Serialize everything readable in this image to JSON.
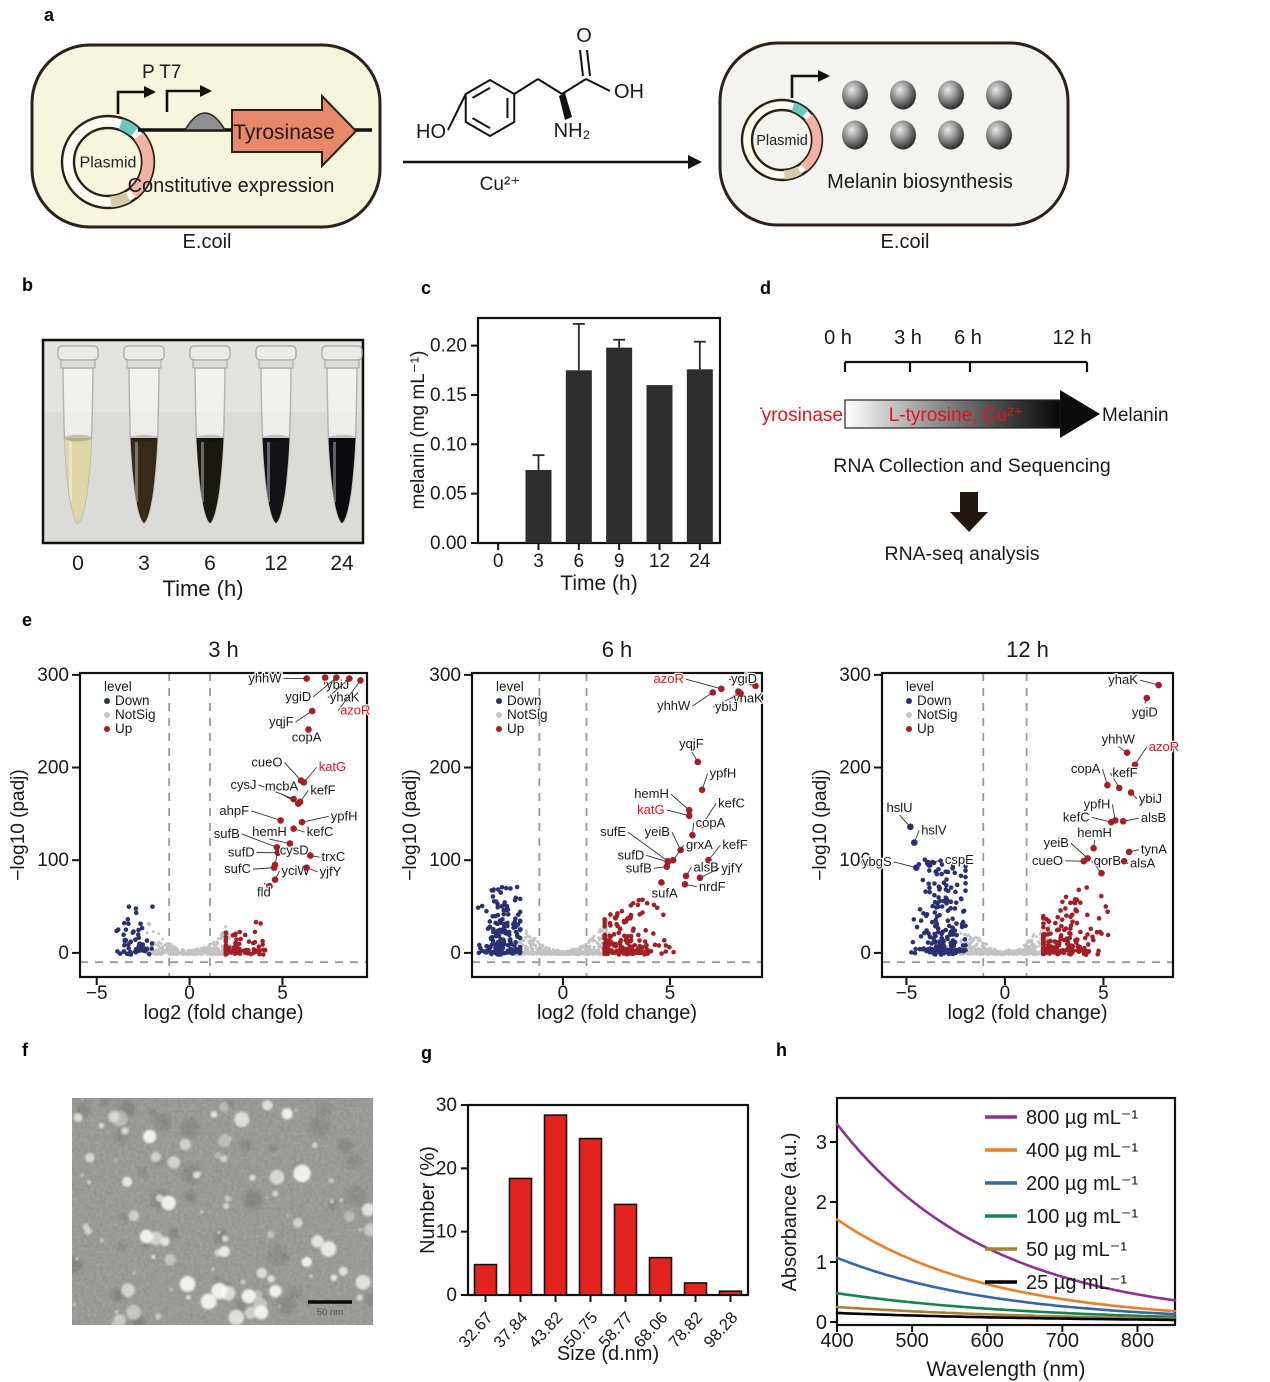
{
  "figure": {
    "panel_labels": {
      "a": "a",
      "b": "b",
      "c": "c",
      "d": "d",
      "e": "e",
      "f": "f",
      "g": "g",
      "h": "h"
    },
    "colors": {
      "highlight": "#e8121a",
      "up": "#a41e24",
      "down": "#283272",
      "notsig": "#c3c3c3",
      "axis": "#111111"
    }
  },
  "panel_a": {
    "left_cell": {
      "fill": "#f6f5de",
      "plasmid_label": "Plasmid",
      "promoter_label": "P T7",
      "gene_label": "Tyrosinase",
      "gene_fill": "#e8886a",
      "caption": "Constitutive expression",
      "organism": "E.coil"
    },
    "substrate": {
      "ho": "HO",
      "o": "O",
      "oh": "OH",
      "nh2": "NH₂"
    },
    "catalyst": "Cu²⁺",
    "right_cell": {
      "fill": "#f3f3f0",
      "plasmid_label": "Plasmid",
      "caption": "Melanin biosynthesis",
      "organism": "E.coil"
    },
    "plasmid_segment_colors": [
      "#6ac8bf",
      "#f2b3a7",
      "#d9caa6"
    ]
  },
  "panel_b": {
    "times": [
      "0",
      "3",
      "6",
      "12",
      "24"
    ],
    "xlabel": "Time (h)",
    "liquid_colors": [
      "#ded7a8",
      "#352a18",
      "#191911",
      "#121217",
      "#0c0c10"
    ]
  },
  "panel_d": {
    "timepoints": [
      "0 h",
      "3 h",
      "6 h",
      "12 h"
    ],
    "enzyme": "Tyrosinase",
    "arrow_label": "L-tyrosine, Cu²⁺",
    "product": "Melanin",
    "step1": "RNA Collection and Sequencing",
    "step2": "RNA-seq analysis"
  },
  "panel_f": {
    "scalebar_label": "50 nm"
  },
  "volcano_common": {
    "xlabel": "log2 (fold change)",
    "ylabel": "−log10 (padj)",
    "yticks": [
      0,
      100,
      200,
      300
    ],
    "vlines": [
      -1.1,
      1.1
    ],
    "hline": -10,
    "legend": {
      "title": "level",
      "items": [
        {
          "label": "Down",
          "color": "#283272"
        },
        {
          "label": "NotSig",
          "color": "#c3c3c3"
        },
        {
          "label": "Up",
          "color": "#a41e24"
        }
      ]
    }
  },
  "chart_data": [
    {
      "id": "c",
      "type": "bar",
      "categories": [
        "0",
        "3",
        "6",
        "9",
        "12",
        "24"
      ],
      "values": [
        0,
        0.074,
        0.175,
        0.198,
        0.16,
        0.176
      ],
      "errors": [
        0,
        0.015,
        0.047,
        0.008,
        0,
        0.028
      ],
      "ylabel": "melanin (mg mL⁻¹)",
      "xlabel": "Time (h)",
      "yticks": [
        "0.00",
        "0.05",
        "0.10",
        "0.15",
        "0.20"
      ],
      "ylim": [
        0,
        0.228
      ],
      "bar_color": "#2d2d2d"
    },
    {
      "id": "volcano_3h",
      "type": "scatter",
      "title": "3 h",
      "xticks": [
        -5,
        0,
        5
      ],
      "xlim": [
        -5.9,
        9.55
      ],
      "ylim": [
        -26,
        302
      ],
      "cloud": {
        "seed": 7,
        "gray": {
          "n": 430,
          "xw": 2.3,
          "ymax": 36
        },
        "blue": {
          "n": 60,
          "xc": -2.9,
          "xs": 0.75,
          "ymax": 50
        },
        "red": {
          "n": 80,
          "xc": 2.7,
          "xs": 1.15,
          "ymax": 60
        }
      },
      "genes": [
        [
          "yhhW",
          6.3,
          296,
          4.95,
          292,
          "e",
          ""
        ],
        [
          "ybiJ",
          7.3,
          297,
          7.35,
          285,
          "s",
          ""
        ],
        [
          "ygiD",
          7.9,
          297,
          6.55,
          272,
          "e",
          ""
        ],
        [
          "yhaK",
          8.6,
          296,
          7.55,
          271,
          "s",
          ""
        ],
        [
          "azoR",
          9.2,
          294,
          8.1,
          257,
          "s",
          "r"
        ],
        [
          "yqjF",
          6.6,
          261,
          5.6,
          245,
          "e",
          ""
        ],
        [
          "copA",
          6.4,
          241,
          6.3,
          228,
          "m",
          ""
        ],
        [
          "cueO",
          6.0,
          186,
          5.0,
          201,
          "e",
          ""
        ],
        [
          "katG",
          6.15,
          184,
          6.95,
          196,
          "s",
          "r"
        ],
        [
          "cysJ",
          5.6,
          166,
          3.6,
          177,
          "e",
          ""
        ],
        [
          "mcbA",
          5.85,
          161,
          4.95,
          175,
          "m",
          ""
        ],
        [
          "kefF",
          5.95,
          163,
          6.5,
          171,
          "s",
          ""
        ],
        [
          "ahpF",
          4.9,
          143,
          3.2,
          149,
          "e",
          ""
        ],
        [
          "ypfH",
          6.05,
          141,
          7.6,
          143,
          "s",
          ""
        ],
        [
          "sufB",
          4.7,
          114,
          2.7,
          124,
          "e",
          ""
        ],
        [
          "hemH",
          5.4,
          118,
          4.3,
          126,
          "m",
          ""
        ],
        [
          "kefC",
          5.6,
          134,
          6.3,
          126,
          "s",
          ""
        ],
        [
          "sufD",
          4.75,
          108,
          3.5,
          104,
          "e",
          ""
        ],
        [
          "cysD",
          4.6,
          95,
          4.85,
          106,
          "s",
          ""
        ],
        [
          "trxC",
          6.5,
          105,
          7.1,
          99,
          "s",
          ""
        ],
        [
          "sufC",
          4.55,
          92,
          3.3,
          86,
          "e",
          ""
        ],
        [
          "yciW",
          4.6,
          79,
          4.95,
          84,
          "s",
          ""
        ],
        [
          "yjfY",
          6.3,
          92,
          7.0,
          83,
          "s",
          ""
        ],
        [
          "fld",
          4.3,
          72,
          4.0,
          61,
          "m",
          ""
        ]
      ]
    },
    {
      "id": "volcano_6h",
      "type": "scatter",
      "title": "6 h",
      "xticks": [
        0,
        5
      ],
      "xlim": [
        -4.25,
        9.3
      ],
      "ylim": [
        -26,
        302
      ],
      "cloud": {
        "seed": 13,
        "gray": {
          "n": 500,
          "xw": 2.25,
          "ymax": 40
        },
        "blue": {
          "n": 170,
          "xc": -2.8,
          "xs": 0.6,
          "ymax": 70
        },
        "red": {
          "n": 160,
          "xc": 2.9,
          "xs": 1.15,
          "ymax": 105
        }
      },
      "genes": [
        [
          "azoR",
          7.4,
          285,
          5.65,
          291,
          "e",
          "r"
        ],
        [
          "ygiD",
          9.0,
          288,
          7.85,
          291,
          "s",
          ""
        ],
        [
          "yhaK",
          8.2,
          282,
          7.95,
          270,
          "s",
          ""
        ],
        [
          "yhhW",
          7.0,
          281,
          5.95,
          262,
          "e",
          ""
        ],
        [
          "ybiJ",
          8.3,
          280,
          7.1,
          261,
          "s",
          ""
        ],
        [
          "yqjF",
          6.3,
          206,
          6.0,
          221,
          "m",
          ""
        ],
        [
          "ypfH",
          6.5,
          176,
          6.85,
          189,
          "s",
          ""
        ],
        [
          "hemH",
          5.9,
          154,
          4.95,
          167,
          "e",
          ""
        ],
        [
          "katG",
          5.9,
          148,
          4.75,
          150,
          "e",
          "r"
        ],
        [
          "kefC",
          6.5,
          138,
          7.25,
          157,
          "s",
          ""
        ],
        [
          "copA",
          6.05,
          127,
          6.2,
          136,
          "s",
          ""
        ],
        [
          "sufE",
          4.9,
          99,
          2.95,
          126,
          "e",
          ""
        ],
        [
          "yeiB",
          5.5,
          111,
          5.0,
          126,
          "e",
          ""
        ],
        [
          "grxA",
          5.15,
          100,
          5.75,
          112,
          "s",
          ""
        ],
        [
          "kefF",
          6.8,
          100,
          7.45,
          112,
          "s",
          ""
        ],
        [
          "sufD",
          4.9,
          98,
          3.8,
          101,
          "e",
          ""
        ],
        [
          "sufB",
          4.85,
          93,
          4.15,
          87,
          "e",
          ""
        ],
        [
          "alsB",
          5.75,
          83,
          6.1,
          88,
          "s",
          ""
        ],
        [
          "yjfY",
          6.4,
          81,
          7.4,
          87,
          "s",
          ""
        ],
        [
          "nrdF",
          5.7,
          74,
          6.35,
          67,
          "s",
          ""
        ],
        [
          "sufA",
          4.6,
          76,
          4.75,
          60,
          "m",
          ""
        ]
      ]
    },
    {
      "id": "volcano_12h",
      "type": "scatter",
      "title": "12 h",
      "xticks": [
        -5,
        0,
        5
      ],
      "xlim": [
        -6.24,
        8.53
      ],
      "ylim": [
        -26,
        302
      ],
      "cloud": {
        "seed": 21,
        "gray": {
          "n": 520,
          "xw": 2.25,
          "ymax": 40
        },
        "blue": {
          "n": 200,
          "xc": -3.1,
          "xs": 0.85,
          "ymax": 100
        },
        "red": {
          "n": 175,
          "xc": 3.0,
          "xs": 1.2,
          "ymax": 115
        }
      },
      "genes": [
        [
          "yhaK",
          7.8,
          289,
          6.75,
          290,
          "e",
          ""
        ],
        [
          "ygiD",
          7.2,
          275,
          7.1,
          255,
          "m",
          ""
        ],
        [
          "yhhW",
          6.2,
          216,
          5.75,
          226,
          "m",
          ""
        ],
        [
          "azoR",
          6.6,
          203,
          7.3,
          218,
          "s",
          "r"
        ],
        [
          "copA",
          5.2,
          181,
          4.85,
          194,
          "e",
          ""
        ],
        [
          "kefF",
          5.8,
          178,
          5.45,
          190,
          "s",
          ""
        ],
        [
          "ybiJ",
          6.4,
          173,
          6.8,
          162,
          "s",
          ""
        ],
        [
          "ypfH",
          5.6,
          143,
          5.35,
          156,
          "e",
          ""
        ],
        [
          "kefC",
          5.4,
          141,
          4.3,
          142,
          "e",
          ""
        ],
        [
          "alsB",
          6.0,
          142,
          6.9,
          141,
          "s",
          ""
        ],
        [
          "hemH",
          4.5,
          113,
          4.55,
          125,
          "m",
          ""
        ],
        [
          "yeiB",
          4.2,
          102,
          3.25,
          114,
          "e",
          ""
        ],
        [
          "tynA",
          6.3,
          109,
          6.9,
          107,
          "s",
          ""
        ],
        [
          "cueO",
          4.0,
          99,
          2.95,
          95,
          "e",
          ""
        ],
        [
          "qorB",
          4.9,
          86,
          4.5,
          95,
          "s",
          ""
        ],
        [
          "alsA",
          6.05,
          99,
          6.35,
          92,
          "s",
          ""
        ],
        [
          "hslU",
          -4.8,
          136,
          -5.35,
          152,
          "m",
          "d"
        ],
        [
          "hslV",
          -4.6,
          119,
          -4.25,
          128,
          "s",
          "d"
        ],
        [
          "ybgS",
          -4.5,
          92,
          -5.75,
          94,
          "e",
          "d"
        ],
        [
          "cspE",
          -3.9,
          97,
          -3.05,
          96,
          "s",
          "d"
        ]
      ]
    },
    {
      "id": "g",
      "type": "bar",
      "categories": [
        "32.67",
        "37.84",
        "43.82",
        "50.75",
        "58.77",
        "68.06",
        "78.82",
        "98.28"
      ],
      "values": [
        4.8,
        18.4,
        28.4,
        24.7,
        14.3,
        5.9,
        1.9,
        0.6
      ],
      "ylabel": "Number (%)",
      "xlabel": "Size (d.nm)",
      "yticks": [
        0,
        10,
        20,
        30
      ],
      "ylim": [
        0,
        30
      ],
      "bar_color": "#e3231e"
    },
    {
      "id": "h",
      "type": "line",
      "xlabel": "Wavelength (nm)",
      "ylabel": "Absorbance  (a.u.)",
      "xticks": [
        400,
        500,
        600,
        700,
        800
      ],
      "yticks": [
        0,
        1,
        2,
        3
      ],
      "xlim": [
        400,
        850
      ],
      "ylim": [
        0,
        3.73
      ],
      "series": [
        {
          "label": "800 µg mL⁻¹",
          "color": "#8f3192",
          "a400": 3.3,
          "a850": 0.36
        },
        {
          "label": "400 µg mL⁻¹",
          "color": "#ef7d22",
          "a400": 1.71,
          "a850": 0.18
        },
        {
          "label": "200 µg mL⁻¹",
          "color": "#3466ad",
          "a400": 1.07,
          "a850": 0.13
        },
        {
          "label": "100 µg mL⁻¹",
          "color": "#13854d",
          "a400": 0.48,
          "a850": 0.085
        },
        {
          "label": "50   µg mL⁻¹",
          "color": "#a8802f",
          "a400": 0.25,
          "a850": 0.055
        },
        {
          "label": "25   µg mL⁻¹",
          "color": "#000000",
          "a400": 0.15,
          "a850": 0.035
        }
      ]
    }
  ]
}
